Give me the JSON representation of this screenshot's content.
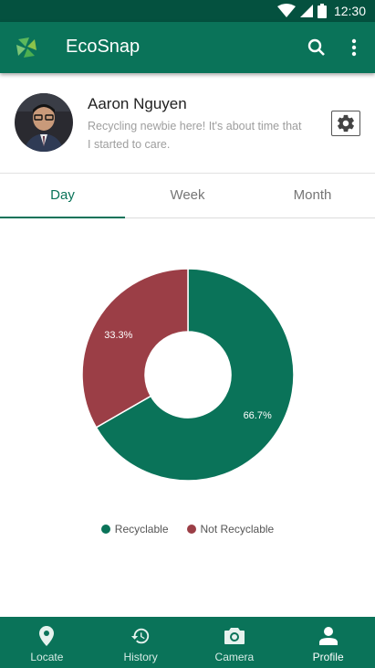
{
  "status_bar": {
    "time": "12:30"
  },
  "app_bar": {
    "title": "EcoSnap"
  },
  "profile": {
    "name": "Aaron Nguyen",
    "bio": "Recycling newbie here! It's about time that I started to care."
  },
  "tabs": [
    {
      "label": "Day",
      "active": true
    },
    {
      "label": "Week",
      "active": false
    },
    {
      "label": "Month",
      "active": false
    }
  ],
  "chart_data": {
    "type": "pie",
    "categories": [
      "Recyclable",
      "Not Recyclable"
    ],
    "values": [
      66.7,
      33.3
    ],
    "labels": [
      "66.7%",
      "33.3%"
    ],
    "colors": [
      "#0a7359",
      "#9b3e46"
    ],
    "legend_placement": "bottom"
  },
  "legend": {
    "recyclable": "Recyclable",
    "not_recyclable": "Not Recyclable"
  },
  "bottom_nav": [
    {
      "label": "Locate",
      "icon": "location-pin-icon",
      "active": false
    },
    {
      "label": "History",
      "icon": "history-icon",
      "active": false
    },
    {
      "label": "Camera",
      "icon": "camera-icon",
      "active": false
    },
    {
      "label": "Profile",
      "icon": "person-icon",
      "active": true
    }
  ],
  "colors": {
    "primary": "#0a7359",
    "primary_dark": "#04513f",
    "recyclable": "#0a7359",
    "not_recyclable": "#9b3e46"
  }
}
